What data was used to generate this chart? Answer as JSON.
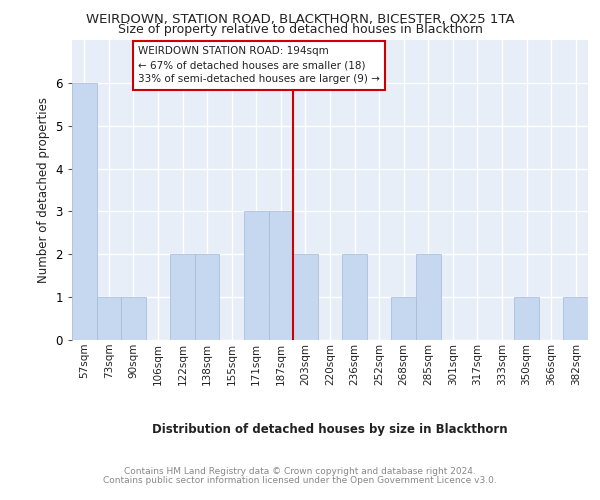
{
  "title": "WEIRDOWN, STATION ROAD, BLACKTHORN, BICESTER, OX25 1TA",
  "subtitle": "Size of property relative to detached houses in Blackthorn",
  "xlabel": "Distribution of detached houses by size in Blackthorn",
  "ylabel": "Number of detached properties",
  "categories": [
    "57sqm",
    "73sqm",
    "90sqm",
    "106sqm",
    "122sqm",
    "138sqm",
    "155sqm",
    "171sqm",
    "187sqm",
    "203sqm",
    "220sqm",
    "236sqm",
    "252sqm",
    "268sqm",
    "285sqm",
    "301sqm",
    "317sqm",
    "333sqm",
    "350sqm",
    "366sqm",
    "382sqm"
  ],
  "values": [
    6,
    1,
    1,
    0,
    2,
    2,
    0,
    3,
    3,
    2,
    0,
    2,
    0,
    1,
    2,
    0,
    0,
    0,
    1,
    0,
    1
  ],
  "bar_color": "#c5d8f0",
  "bar_edge_color": "#a0bbd8",
  "vline_color": "#cc0000",
  "annotation_text": "WEIRDOWN STATION ROAD: 194sqm\n← 67% of detached houses are smaller (18)\n33% of semi-detached houses are larger (9) →",
  "annotation_box_color": "#ffffff",
  "annotation_box_edge_color": "#cc0000",
  "ylim": [
    0,
    7
  ],
  "yticks": [
    0,
    1,
    2,
    3,
    4,
    5,
    6
  ],
  "background_color": "#e8eef8",
  "grid_color": "#ffffff",
  "footer_line1": "Contains HM Land Registry data © Crown copyright and database right 2024.",
  "footer_line2": "Contains public sector information licensed under the Open Government Licence v3.0."
}
